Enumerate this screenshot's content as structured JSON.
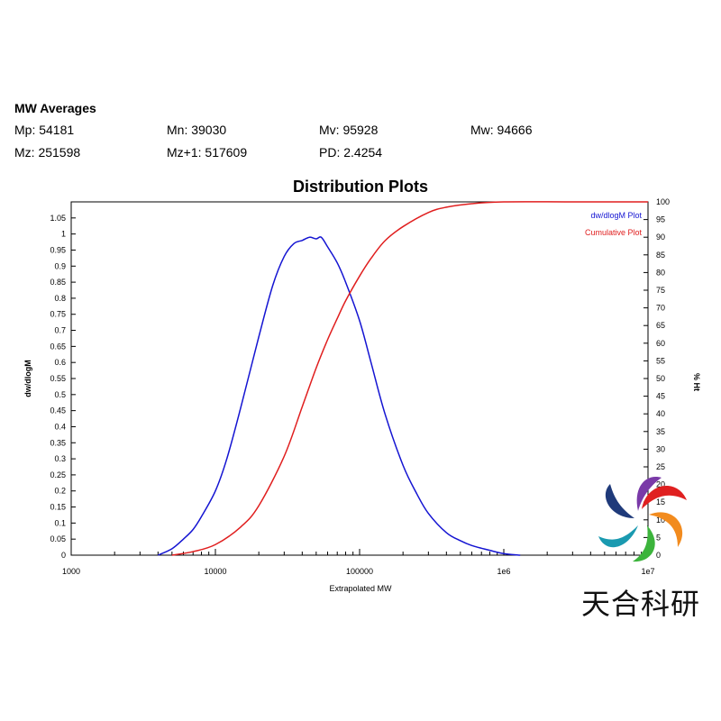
{
  "averages": {
    "title": "MW Averages",
    "items": [
      {
        "label": "Mp: 54181"
      },
      {
        "label": "Mn: 39030"
      },
      {
        "label": "Mv: 95928"
      },
      {
        "label": "Mw: 94666"
      },
      {
        "label": "Mz: 251598"
      },
      {
        "label": "Mz+1: 517609"
      },
      {
        "label": "PD: 2.4254"
      }
    ]
  },
  "watermark": {
    "text": "天合科研"
  },
  "chart_data": {
    "type": "line",
    "title": "Distribution Plots",
    "xlabel": "Extrapolated MW",
    "ylabel": "dw/dlogM",
    "y2label": "% Ht",
    "xscale": "log",
    "xlim": [
      1000,
      10000000
    ],
    "ylim": [
      0,
      1.1
    ],
    "y2lim": [
      0,
      100
    ],
    "x_ticks": [
      "1000",
      "10000",
      "100000",
      "1e6",
      "1e7"
    ],
    "y_ticks": [
      "0",
      "0.05",
      "0.1",
      "0.15",
      "0.2",
      "0.25",
      "0.3",
      "0.35",
      "0.4",
      "0.45",
      "0.5",
      "0.55",
      "0.6",
      "0.65",
      "0.7",
      "0.75",
      "0.8",
      "0.85",
      "0.9",
      "0.95",
      "1",
      "1.05"
    ],
    "y2_ticks": [
      "0",
      "5",
      "10",
      "15",
      "20",
      "25",
      "30",
      "35",
      "40",
      "45",
      "50",
      "55",
      "60",
      "65",
      "70",
      "75",
      "80",
      "85",
      "90",
      "95",
      "100"
    ],
    "legend_position": "top-right",
    "grid": false,
    "series": [
      {
        "name": "dw/dlogM Plot",
        "color": "#1414d2",
        "axis": "left",
        "x": [
          4000,
          5000,
          6000,
          7000,
          8000,
          10000,
          12000,
          15000,
          20000,
          25000,
          30000,
          35000,
          40000,
          45000,
          50000,
          54181,
          60000,
          70000,
          80000,
          100000,
          120000,
          150000,
          200000,
          250000,
          300000,
          400000,
          500000,
          600000,
          800000,
          1000000,
          1300000
        ],
        "y": [
          0.0,
          0.02,
          0.05,
          0.08,
          0.12,
          0.2,
          0.3,
          0.46,
          0.68,
          0.84,
          0.93,
          0.97,
          0.98,
          0.99,
          0.985,
          0.99,
          0.96,
          0.91,
          0.85,
          0.73,
          0.6,
          0.44,
          0.28,
          0.19,
          0.13,
          0.07,
          0.045,
          0.03,
          0.015,
          0.005,
          0.0
        ]
      },
      {
        "name": "Cumulative Plot",
        "color": "#e01e1e",
        "axis": "right",
        "x": [
          5000,
          7000,
          10000,
          15000,
          20000,
          30000,
          40000,
          50000,
          60000,
          70000,
          80000,
          100000,
          120000,
          150000,
          200000,
          300000,
          400000,
          600000,
          1000000,
          3000000,
          10000000
        ],
        "y": [
          0,
          1,
          3,
          8,
          14,
          28,
          42,
          53,
          61,
          67,
          72,
          79,
          84,
          89,
          93,
          97,
          98.5,
          99.5,
          100,
          100,
          100
        ]
      }
    ]
  }
}
